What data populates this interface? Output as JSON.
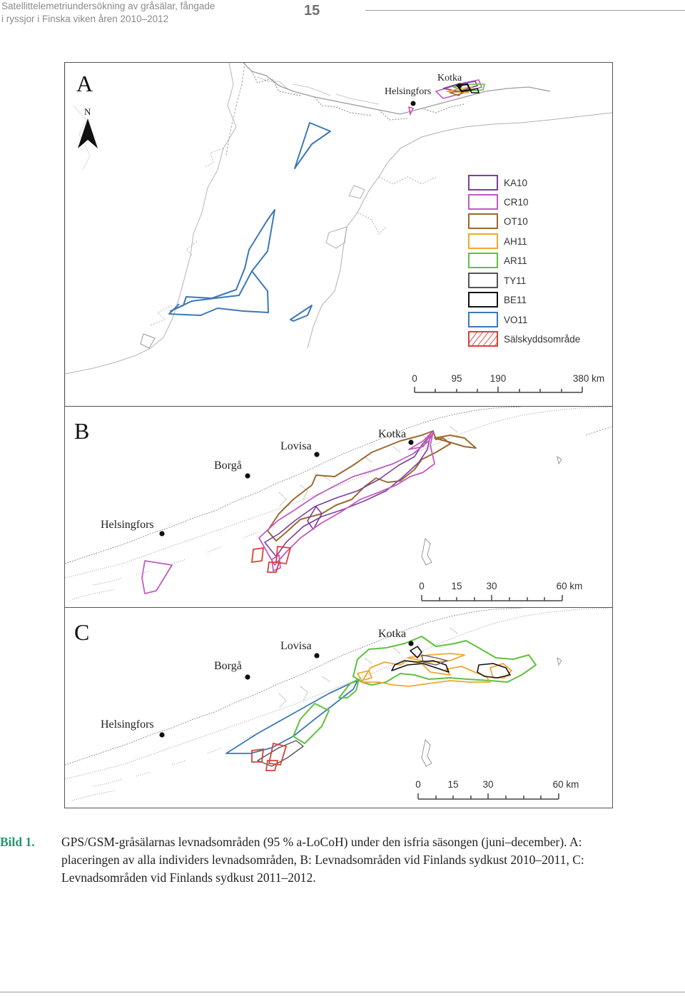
{
  "header": {
    "running_title_line1": "Satellittelemetriundersökning av gråsälar, fångade",
    "running_title_line2": "i ryssjor i Finska viken åren 2010–2012",
    "page_number": "15"
  },
  "panels": {
    "a": {
      "letter": "A",
      "north_label": "N",
      "places": {
        "kotka": "Kotka",
        "helsingfors": "Helsingfors"
      },
      "legend": [
        {
          "label": "KA10",
          "color": "#7b3f9e"
        },
        {
          "label": "CR10",
          "color": "#c25bc0"
        },
        {
          "label": "OT10",
          "color": "#9a6a2f"
        },
        {
          "label": "AH11",
          "color": "#f0a830"
        },
        {
          "label": "AR11",
          "color": "#5fc13e"
        },
        {
          "label": "TY11",
          "color": "#555555"
        },
        {
          "label": "BE11",
          "color": "#111111"
        },
        {
          "label": "VO11",
          "color": "#3b78b8"
        },
        {
          "label": "Sälskyddsområde",
          "color": "#d9403a"
        }
      ],
      "scale": {
        "ticks": [
          "0",
          "95",
          "190",
          "380 km"
        ]
      }
    },
    "b": {
      "letter": "B",
      "places": {
        "kotka": "Kotka",
        "lovisa": "Lovisa",
        "borga": "Borgå",
        "helsingfors": "Helsingfors"
      },
      "scale": {
        "ticks": [
          "0",
          "15",
          "30",
          "60 km"
        ]
      }
    },
    "c": {
      "letter": "C",
      "places": {
        "kotka": "Kotka",
        "lovisa": "Lovisa",
        "borga": "Borgå",
        "helsingfors": "Helsingfors"
      },
      "scale": {
        "ticks": [
          "0",
          "15",
          "30",
          "60 km"
        ]
      }
    }
  },
  "caption": {
    "label": "Bild 1.",
    "text": "GPS/GSM-gråsälarnas levnadsområden (95 % a-LoCoH) under den isfria säsongen (juni–december). A: placeringen av alla individers levnadsområden, B: Levnadsområden vid Finlands sydkust 2010–2011, C: Levnadsområden vid Finlands sydkust 2011–2012."
  }
}
